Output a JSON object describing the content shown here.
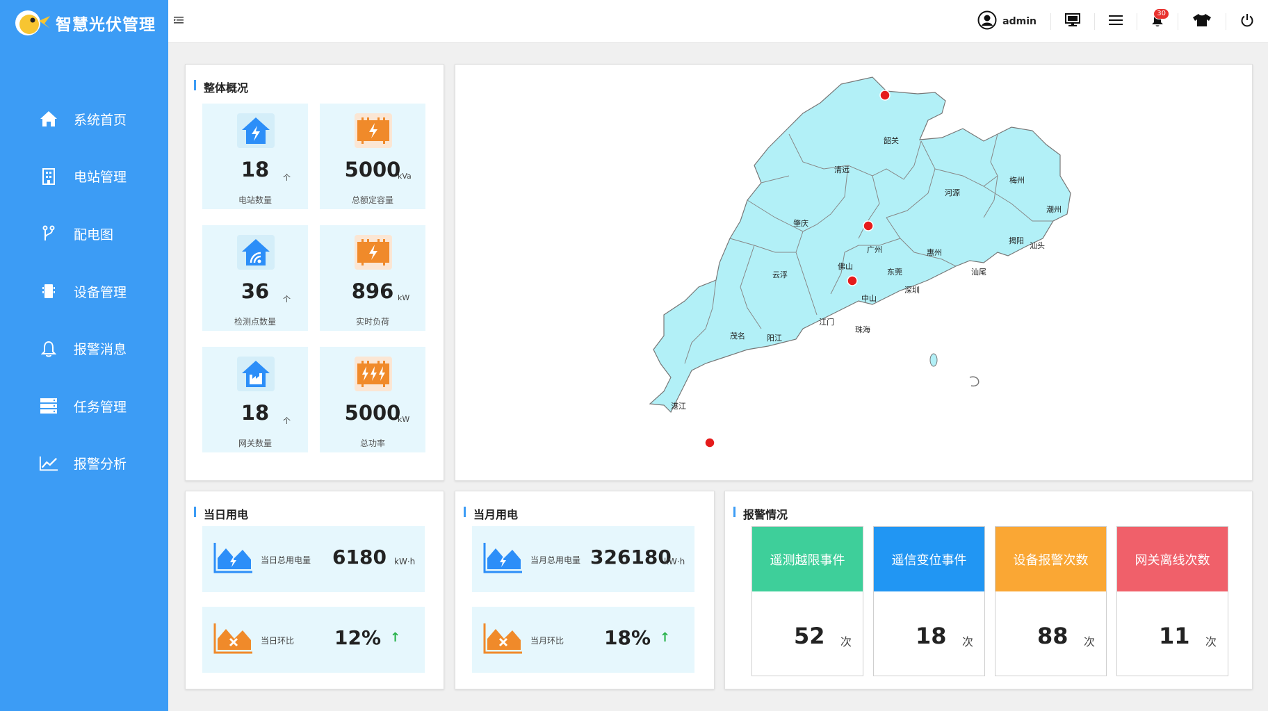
{
  "app": {
    "title": "智慧光伏管理"
  },
  "sidebar": {
    "items": [
      {
        "label": "系统首页",
        "icon": "home-icon"
      },
      {
        "label": "电站管理",
        "icon": "building-icon"
      },
      {
        "label": "配电图",
        "icon": "branch-icon"
      },
      {
        "label": "设备管理",
        "icon": "device-icon"
      },
      {
        "label": "报警消息",
        "icon": "bell-icon"
      },
      {
        "label": "任务管理",
        "icon": "server-icon"
      },
      {
        "label": "报警分析",
        "icon": "chart-line-icon"
      }
    ]
  },
  "header": {
    "user": "admin",
    "notification_count": "30"
  },
  "overview": {
    "title": "整体概况",
    "cards": [
      {
        "value": "18",
        "unit": "个",
        "label": "电站数量",
        "icon": "house-bolt-icon",
        "color": "#2c8ef8"
      },
      {
        "value": "5000",
        "unit": "kVa",
        "label": "总额定容量",
        "icon": "panel-bolt-icon",
        "color": "#f08a2a"
      },
      {
        "value": "36",
        "unit": "个",
        "label": "检测点数量",
        "icon": "house-signal-icon",
        "color": "#2c8ef8"
      },
      {
        "value": "896",
        "unit": "kW",
        "label": "实时负荷",
        "icon": "panel-bolt-icon",
        "color": "#f08a2a"
      },
      {
        "value": "18",
        "unit": "个",
        "label": "网关数量",
        "icon": "house-factory-icon",
        "color": "#2c8ef8"
      },
      {
        "value": "5000",
        "unit": "kW",
        "label": "总功率",
        "icon": "panel-triple-bolt-icon",
        "color": "#f08a2a"
      }
    ]
  },
  "map": {
    "cities": [
      "韶关",
      "清远",
      "河源",
      "梅州",
      "潮州",
      "肇庆",
      "广州",
      "揭阳",
      "汕头",
      "惠州",
      "佛山",
      "东莞",
      "汕尾",
      "云浮",
      "深圳",
      "中山",
      "江门",
      "珠海",
      "茂名",
      "阳江",
      "湛江"
    ]
  },
  "daily": {
    "title": "当日用电",
    "total_label": "当日总用电量",
    "total_value": "6180",
    "total_unit": "kW·h",
    "ratio_label": "当日环比",
    "ratio_value": "12%",
    "trend": "↑"
  },
  "monthly": {
    "title": "当月用电",
    "total_label": "当月总用电量",
    "total_value": "326180",
    "total_unit": "kW·h",
    "ratio_label": "当月环比",
    "ratio_value": "18%",
    "trend": "↑"
  },
  "alarms": {
    "title": "报警情况",
    "unit": "次",
    "cards": [
      {
        "label": "遥测越限事件",
        "value": "52",
        "color": "#3ecf9a"
      },
      {
        "label": "遥信变位事件",
        "value": "18",
        "color": "#2196f3"
      },
      {
        "label": "设备报警次数",
        "value": "88",
        "color": "#faa734"
      },
      {
        "label": "网关离线次数",
        "value": "11",
        "color": "#f0606a"
      }
    ]
  }
}
